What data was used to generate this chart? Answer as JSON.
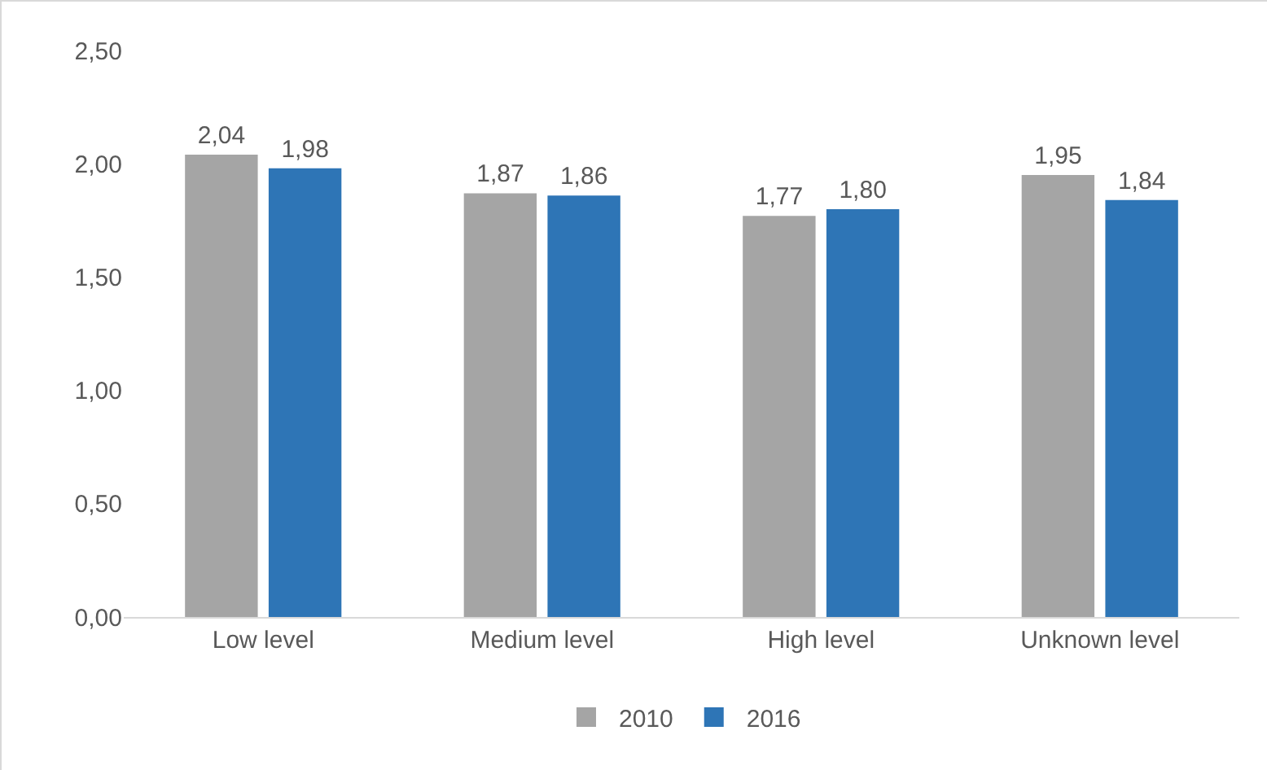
{
  "chart_data": {
    "type": "bar",
    "categories": [
      "Low level",
      "Medium level",
      "High level",
      "Unknown level"
    ],
    "series": [
      {
        "name": "2010",
        "color": "#a5a5a5",
        "values": [
          2.04,
          1.87,
          1.77,
          1.95
        ],
        "value_labels": [
          "2,04",
          "1,87",
          "1,77",
          "1,95"
        ]
      },
      {
        "name": "2016",
        "color": "#2e75b6",
        "values": [
          1.98,
          1.86,
          1.8,
          1.84
        ],
        "value_labels": [
          "1,98",
          "1,86",
          "1,80",
          "1,84"
        ]
      }
    ],
    "ylim": [
      0,
      2.5
    ],
    "yticks": [
      {
        "value": 0,
        "label": "0,00"
      },
      {
        "value": 0.5,
        "label": "0,50"
      },
      {
        "value": 1,
        "label": "1,00"
      },
      {
        "value": 1.5,
        "label": "1,50"
      },
      {
        "value": 2,
        "label": "2,00"
      },
      {
        "value": 2.5,
        "label": "2,50"
      }
    ],
    "grid": false,
    "legend": "bottom"
  }
}
